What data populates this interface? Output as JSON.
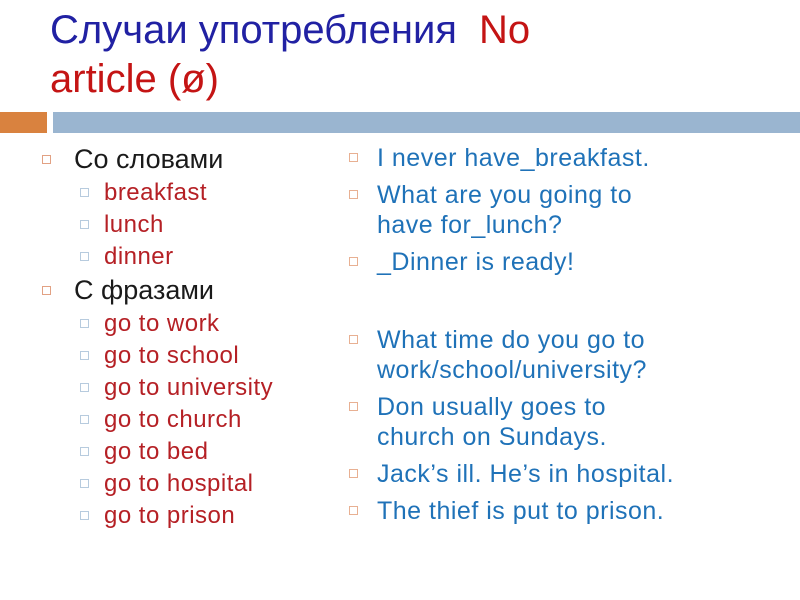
{
  "slide": {
    "title": {
      "blue_text": "Случаи употребления",
      "red_text_line1": "No",
      "red_text_line2": "article (ø)"
    },
    "colors": {
      "title_blue": "#2121A3",
      "title_red": "#C41414",
      "divider_orange": "#D9823F",
      "divider_blue": "#9AB5D0",
      "left_header_black": "#1A1A1A",
      "left_item_red": "#B52025",
      "right_text_blue": "#1F72B8",
      "bullet_peach_outline": "#E2A183",
      "bullet_light_blue_outline": "#B7CBDE",
      "background": "#FFFFFF"
    },
    "left_column": {
      "items": [
        {
          "level": 1,
          "text": "Со словами"
        },
        {
          "level": 2,
          "text": "breakfast"
        },
        {
          "level": 2,
          "text": "lunch"
        },
        {
          "level": 2,
          "text": "dinner"
        },
        {
          "level": 1,
          "text": "С фразами"
        },
        {
          "level": 2,
          "text": "go to work"
        },
        {
          "level": 2,
          "text": "go to school"
        },
        {
          "level": 2,
          "text": "go to university"
        },
        {
          "level": 2,
          "text": "go to church"
        },
        {
          "level": 2,
          "text": "go to bed"
        },
        {
          "level": 2,
          "text": "go to hospital"
        },
        {
          "level": 2,
          "text": "go to prison"
        }
      ]
    },
    "right_column": {
      "items": [
        {
          "text": "I never have_breakfast."
        },
        {
          "text": "What are you going to\nhave for_lunch?"
        },
        {
          "text": "_Dinner is ready!"
        },
        {
          "text": "What time do you go to\nwork/school/university?"
        },
        {
          "text": "Don usually goes to\nchurch on Sundays."
        },
        {
          "text": "Jack’s ill. He’s in hospital."
        },
        {
          "text": "The thief is put to prison."
        }
      ]
    }
  }
}
